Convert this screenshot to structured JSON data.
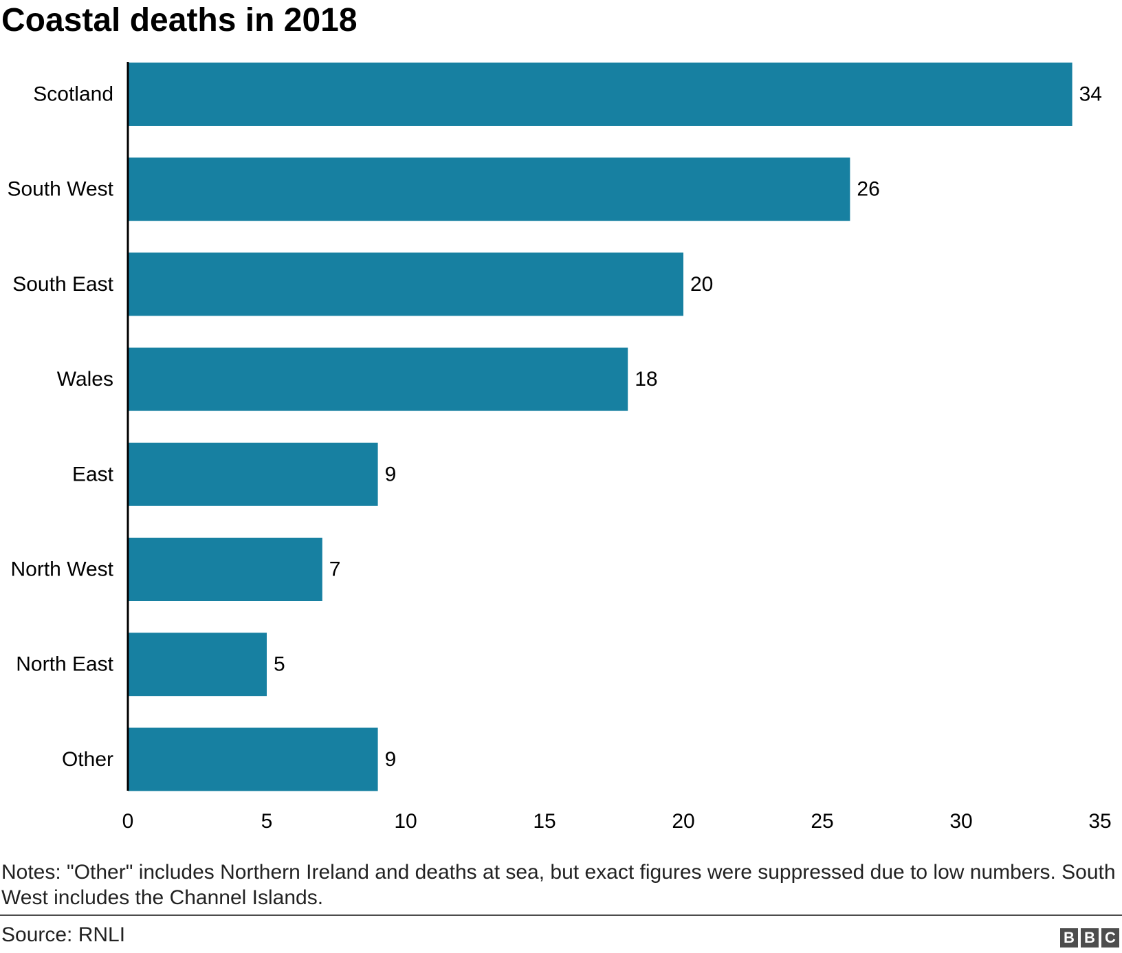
{
  "chart_data": {
    "type": "bar",
    "orientation": "horizontal",
    "title": "Coastal deaths in 2018",
    "categories": [
      "Scotland",
      "South West",
      "South East",
      "Wales",
      "East",
      "North West",
      "North East",
      "Other"
    ],
    "values": [
      34,
      26,
      20,
      18,
      9,
      7,
      5,
      9
    ],
    "xlabel": "",
    "ylabel": "",
    "xlim": [
      0,
      35
    ],
    "xticks": [
      0,
      5,
      10,
      15,
      20,
      25,
      30,
      35
    ],
    "grid": false,
    "bar_color": "#1780a1",
    "data_labels": true
  },
  "notes": "Notes: \"Other\" includes Northern Ireland and deaths at sea, but exact figures were suppressed due to low numbers. South West includes the Channel Islands.",
  "source": "Source: RNLI",
  "logo": {
    "letters": [
      "B",
      "B",
      "C"
    ]
  },
  "colors": {
    "bar": "#1780a1",
    "axis": "#000000",
    "footer_rule": "#4d4d4d",
    "logo_block": "#4d4d4d"
  }
}
